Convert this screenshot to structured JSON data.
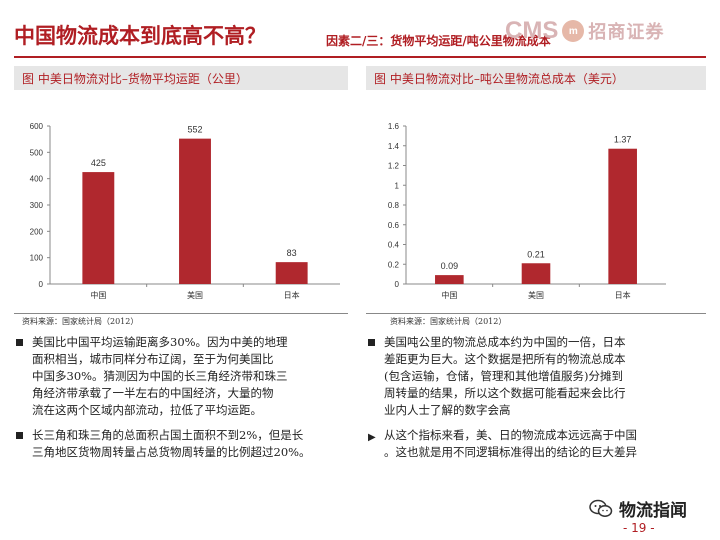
{
  "header": {
    "title": "中国物流成本到底高不高？",
    "subtitle": "因素二/三：货物平均运距/吨公里物流成本",
    "logo_cms": "CMS",
    "logo_circle": "m",
    "logo_cn": "招商证券"
  },
  "left_panel": {
    "heading": "图   中美日物流对比–货物平均运距（公里）",
    "source": "资料来源：国家统计局（2012）"
  },
  "right_panel": {
    "heading": "图   中美日物流对比–吨公里物流总成本（美元）",
    "source": "资料来源：国家统计局（2012）"
  },
  "chart_data": [
    {
      "type": "bar",
      "categories": [
        "中国",
        "美国",
        "日本"
      ],
      "values": [
        425,
        552,
        83
      ],
      "value_labels": [
        "425",
        "552",
        "83"
      ],
      "ylim": [
        0,
        600
      ],
      "yticks": [
        "0",
        "100",
        "200",
        "300",
        "400",
        "500",
        "600"
      ],
      "ytick_values": [
        0,
        100,
        200,
        300,
        400,
        500,
        600
      ],
      "grid": false,
      "color": "#b0282e"
    },
    {
      "type": "bar",
      "categories": [
        "中国",
        "美国",
        "日本"
      ],
      "values": [
        0.09,
        0.21,
        1.37
      ],
      "value_labels": [
        "0.09",
        "0.21",
        "1.37"
      ],
      "ylim": [
        0,
        1.6
      ],
      "yticks": [
        "0",
        "0.2",
        "0.4",
        "0.6",
        "0.8",
        "1",
        "1.2",
        "1.4",
        "1.6"
      ],
      "ytick_values": [
        0,
        0.2,
        0.4,
        0.6,
        0.8,
        1,
        1.2,
        1.4,
        1.6
      ],
      "grid": false,
      "color": "#b0282e"
    }
  ],
  "left_bullets": [
    {
      "marker": "square",
      "lines": [
        "美国比中国平均运输距离多30%。因为中美的地理",
        "面积相当，城市同样分布辽阔，至于为何美国比",
        "中国多30%。猜测因为中国的长三角经济带和珠三",
        "角经济带承载了一半左右的中国经济，大量的物",
        "流在这两个区域内部流动，拉低了平均运距。"
      ]
    },
    {
      "marker": "square",
      "lines": [
        "长三角和珠三角的总面积占国土面积不到2%，但是长",
        "三角地区货物周转量占总货物周转量的比例超过20%。"
      ]
    }
  ],
  "right_bullets": [
    {
      "marker": "square",
      "lines": [
        "美国吨公里的物流总成本约为中国的一倍，日本",
        "差距更为巨大。这个数据是把所有的物流总成本",
        "(包含运输，仓储，管理和其他增值服务)分摊到",
        "周转量的结果，所以这个数据可能看起来会比行",
        "业内人士了解的数字会高"
      ]
    },
    {
      "marker": "triangle",
      "lines": [
        "从这个指标来看，美、日的物流成本远远高于中国",
        "。这也就是用不同逻辑标准得出的结论的巨大差异"
      ]
    }
  ],
  "footer": {
    "wechat_label": "物流指闻",
    "page_number": "- 19 -"
  }
}
